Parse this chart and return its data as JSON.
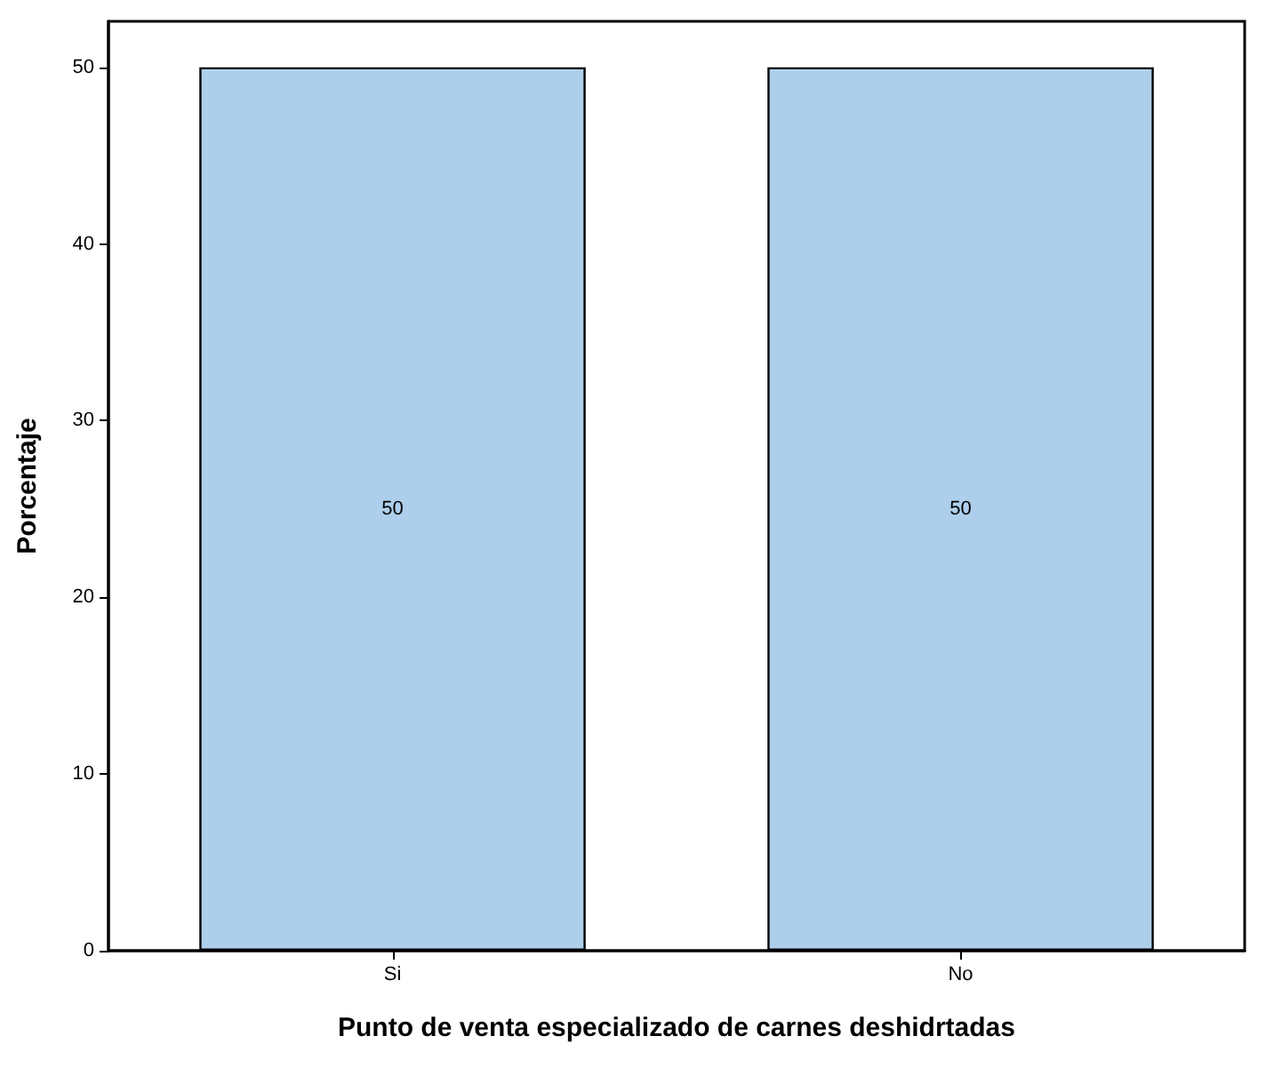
{
  "chart_data": {
    "type": "bar",
    "xlabel": "Punto de venta especializado de carnes deshidrtadas",
    "ylabel": "Porcentaje",
    "categories": [
      "Si",
      "No"
    ],
    "values": [
      50,
      50
    ],
    "color": "#aecfeb",
    "ylim": [
      0,
      52.6
    ],
    "yticks": [
      0,
      10,
      20,
      30,
      40,
      50
    ],
    "grid": false,
    "data_labels": true
  }
}
